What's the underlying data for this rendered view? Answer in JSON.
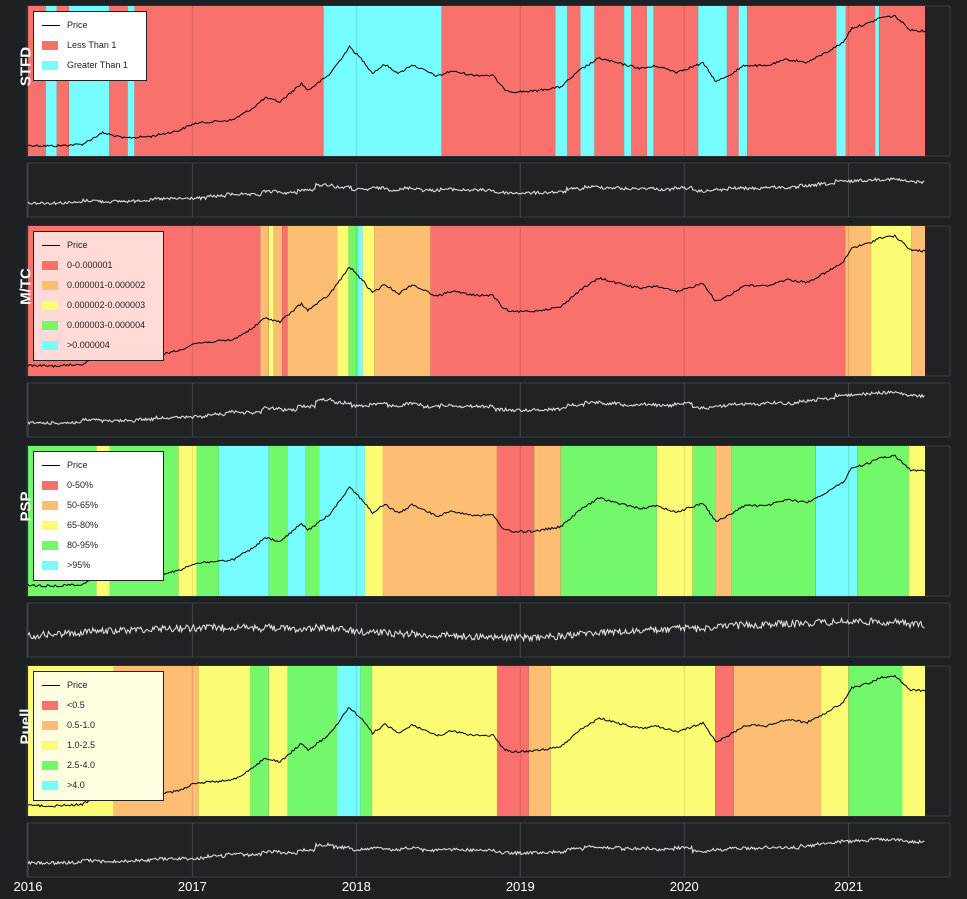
{
  "chart_data": {
    "type": "line",
    "x_ticks": [
      "2016",
      "2017",
      "2018",
      "2019",
      "2020",
      "2021"
    ],
    "x_range": [
      "2016-01-01",
      "2021-06-20"
    ],
    "y_scale": "log",
    "grid": true,
    "legend_placement": "top-left",
    "price_series": {
      "name": "Price",
      "dates": [
        "2016-01-01",
        "2016-03-01",
        "2016-05-01",
        "2016-06-15",
        "2016-08-01",
        "2016-10-01",
        "2016-12-01",
        "2017-01-05",
        "2017-02-01",
        "2017-04-01",
        "2017-05-15",
        "2017-06-12",
        "2017-07-15",
        "2017-09-01",
        "2017-09-15",
        "2017-11-01",
        "2017-12-17",
        "2018-01-15",
        "2018-02-06",
        "2018-03-05",
        "2018-04-06",
        "2018-05-05",
        "2018-06-30",
        "2018-08-01",
        "2018-09-15",
        "2018-11-01",
        "2018-11-25",
        "2018-12-15",
        "2019-02-01",
        "2019-04-01",
        "2019-05-15",
        "2019-06-26",
        "2019-08-01",
        "2019-09-26",
        "2019-11-01",
        "2019-12-15",
        "2020-02-12",
        "2020-03-12",
        "2020-04-15",
        "2020-05-15",
        "2020-07-01",
        "2020-08-15",
        "2020-10-01",
        "2020-11-15",
        "2020-12-20",
        "2021-01-08",
        "2021-02-15",
        "2021-03-13",
        "2021-04-14",
        "2021-05-19",
        "2021-06-20"
      ],
      "values": [
        430,
        420,
        450,
        700,
        570,
        610,
        760,
        1000,
        1050,
        1150,
        1800,
        2700,
        2300,
        4700,
        3600,
        6500,
        19200,
        11500,
        7000,
        9800,
        6900,
        9700,
        6200,
        7600,
        6500,
        6400,
        3800,
        3400,
        3500,
        4100,
        8000,
        12500,
        10500,
        8400,
        9200,
        7300,
        10300,
        5000,
        6800,
        9500,
        9200,
        11800,
        10600,
        16000,
        23000,
        40000,
        48000,
        60000,
        63500,
        37000,
        35500
      ]
    },
    "panels": [
      {
        "title": "STFD",
        "legend": [
          {
            "label": "Price",
            "kind": "line",
            "color": "#000000"
          },
          {
            "label": "Less Than 1",
            "kind": "patch",
            "color": "#f8716c"
          },
          {
            "label": "Greater Than 1",
            "kind": "patch",
            "color": "#75fdff"
          }
        ],
        "bands": [
          {
            "from": "2016-01-01",
            "to": "2016-02-10",
            "class": 0
          },
          {
            "from": "2016-02-10",
            "to": "2016-03-05",
            "class": 1
          },
          {
            "from": "2016-03-05",
            "to": "2016-04-01",
            "class": 0
          },
          {
            "from": "2016-04-01",
            "to": "2016-06-30",
            "class": 1
          },
          {
            "from": "2016-06-30",
            "to": "2016-08-10",
            "class": 0
          },
          {
            "from": "2016-08-10",
            "to": "2016-08-25",
            "class": 1
          },
          {
            "from": "2016-08-25",
            "to": "2017-10-20",
            "class": 0
          },
          {
            "from": "2017-10-20",
            "to": "2018-07-10",
            "class": 1
          },
          {
            "from": "2018-07-10",
            "to": "2019-03-20",
            "class": 0
          },
          {
            "from": "2019-03-20",
            "to": "2019-04-15",
            "class": 1
          },
          {
            "from": "2019-04-15",
            "to": "2019-05-15",
            "class": 0
          },
          {
            "from": "2019-05-15",
            "to": "2019-06-15",
            "class": 1
          },
          {
            "from": "2019-06-15",
            "to": "2019-08-20",
            "class": 0
          },
          {
            "from": "2019-08-20",
            "to": "2019-09-05",
            "class": 1
          },
          {
            "from": "2019-09-05",
            "to": "2019-10-10",
            "class": 0
          },
          {
            "from": "2019-10-10",
            "to": "2019-10-25",
            "class": 1
          },
          {
            "from": "2019-10-25",
            "to": "2020-02-01",
            "class": 0
          },
          {
            "from": "2020-02-01",
            "to": "2020-04-05",
            "class": 1
          },
          {
            "from": "2020-04-05",
            "to": "2020-05-01",
            "class": 0
          },
          {
            "from": "2020-05-01",
            "to": "2020-05-20",
            "class": 1
          },
          {
            "from": "2020-05-20",
            "to": "2020-12-05",
            "class": 0
          },
          {
            "from": "2020-12-05",
            "to": "2020-12-25",
            "class": 1
          },
          {
            "from": "2020-12-25",
            "to": "2021-03-01",
            "class": 0
          },
          {
            "from": "2021-03-01",
            "to": "2021-03-10",
            "class": 1
          },
          {
            "from": "2021-03-10",
            "to": "2021-06-20",
            "class": 0
          }
        ]
      },
      {
        "title": "M/TC",
        "legend": [
          {
            "label": "Price",
            "kind": "line",
            "color": "#000000"
          },
          {
            "label": "0-0.000001",
            "kind": "patch",
            "color": "#f8716c"
          },
          {
            "label": "0.000001-0.000002",
            "kind": "patch",
            "color": "#fdbd72"
          },
          {
            "label": "0.000002-0.000003",
            "kind": "patch",
            "color": "#fdfd75"
          },
          {
            "label": "0.000003-0.000004",
            "kind": "patch",
            "color": "#73f76b"
          },
          {
            "label": ">0.000004",
            "kind": "patch",
            "color": "#75fdff"
          }
        ],
        "bands": [
          {
            "from": "2016-01-01",
            "to": "2017-06-01",
            "class": 0
          },
          {
            "from": "2017-06-01",
            "to": "2017-06-20",
            "class": 1
          },
          {
            "from": "2017-06-20",
            "to": "2017-07-01",
            "class": 2
          },
          {
            "from": "2017-07-01",
            "to": "2017-07-20",
            "class": 1
          },
          {
            "from": "2017-07-20",
            "to": "2017-08-01",
            "class": 0
          },
          {
            "from": "2017-08-01",
            "to": "2017-11-20",
            "class": 1
          },
          {
            "from": "2017-11-20",
            "to": "2017-12-15",
            "class": 2
          },
          {
            "from": "2017-12-15",
            "to": "2018-01-05",
            "class": 3
          },
          {
            "from": "2018-01-05",
            "to": "2018-01-15",
            "class": 4
          },
          {
            "from": "2018-01-15",
            "to": "2018-02-10",
            "class": 2
          },
          {
            "from": "2018-02-10",
            "to": "2018-06-15",
            "class": 1
          },
          {
            "from": "2018-06-15",
            "to": "2020-12-25",
            "class": 0
          },
          {
            "from": "2020-12-25",
            "to": "2021-02-20",
            "class": 1
          },
          {
            "from": "2021-02-20",
            "to": "2021-05-20",
            "class": 2
          },
          {
            "from": "2021-05-20",
            "to": "2021-06-20",
            "class": 1
          }
        ]
      },
      {
        "title": "PSP",
        "legend": [
          {
            "label": "Price",
            "kind": "line",
            "color": "#000000"
          },
          {
            "label": "0-50%",
            "kind": "patch",
            "color": "#f8716c"
          },
          {
            "label": "50-65%",
            "kind": "patch",
            "color": "#fdbd72"
          },
          {
            "label": "65-80%",
            "kind": "patch",
            "color": "#fdfd75"
          },
          {
            "label": "80-95%",
            "kind": "patch",
            "color": "#73f76b"
          },
          {
            "label": ">95%",
            "kind": "patch",
            "color": "#75fdff"
          }
        ],
        "bands": [
          {
            "from": "2016-01-01",
            "to": "2016-06-01",
            "class": 3
          },
          {
            "from": "2016-06-01",
            "to": "2016-07-01",
            "class": 2
          },
          {
            "from": "2016-07-01",
            "to": "2016-12-01",
            "class": 3
          },
          {
            "from": "2016-12-01",
            "to": "2017-01-10",
            "class": 2
          },
          {
            "from": "2017-01-10",
            "to": "2017-03-01",
            "class": 3
          },
          {
            "from": "2017-03-01",
            "to": "2017-06-20",
            "class": 4
          },
          {
            "from": "2017-06-20",
            "to": "2017-08-01",
            "class": 3
          },
          {
            "from": "2017-08-01",
            "to": "2017-09-10",
            "class": 4
          },
          {
            "from": "2017-09-10",
            "to": "2017-10-10",
            "class": 3
          },
          {
            "from": "2017-10-10",
            "to": "2018-01-20",
            "class": 4
          },
          {
            "from": "2018-01-20",
            "to": "2018-03-01",
            "class": 2
          },
          {
            "from": "2018-03-01",
            "to": "2018-11-10",
            "class": 1
          },
          {
            "from": "2018-11-10",
            "to": "2019-02-01",
            "class": 0
          },
          {
            "from": "2019-02-01",
            "to": "2019-04-01",
            "class": 1
          },
          {
            "from": "2019-04-01",
            "to": "2019-11-01",
            "class": 3
          },
          {
            "from": "2019-11-01",
            "to": "2020-01-20",
            "class": 2
          },
          {
            "from": "2020-01-20",
            "to": "2020-03-10",
            "class": 3
          },
          {
            "from": "2020-03-10",
            "to": "2020-04-15",
            "class": 1
          },
          {
            "from": "2020-04-15",
            "to": "2020-10-20",
            "class": 3
          },
          {
            "from": "2020-10-20",
            "to": "2021-01-20",
            "class": 4
          },
          {
            "from": "2021-01-20",
            "to": "2021-05-15",
            "class": 3
          },
          {
            "from": "2021-05-15",
            "to": "2021-06-20",
            "class": 2
          }
        ]
      },
      {
        "title": "Puell",
        "legend": [
          {
            "label": "Price",
            "kind": "line",
            "color": "#000000"
          },
          {
            "label": "<0.5",
            "kind": "patch",
            "color": "#f8716c"
          },
          {
            "label": "0.5-1.0",
            "kind": "patch",
            "color": "#fdbd72"
          },
          {
            "label": "1.0-2.5",
            "kind": "patch",
            "color": "#fdfd75"
          },
          {
            "label": "2.5-4.0",
            "kind": "patch",
            "color": "#73f76b"
          },
          {
            "label": ">4.0",
            "kind": "patch",
            "color": "#75fdff"
          }
        ],
        "bands": [
          {
            "from": "2016-01-01",
            "to": "2016-07-10",
            "class": 2
          },
          {
            "from": "2016-07-10",
            "to": "2017-01-15",
            "class": 1
          },
          {
            "from": "2017-01-15",
            "to": "2017-05-10",
            "class": 2
          },
          {
            "from": "2017-05-10",
            "to": "2017-06-20",
            "class": 3
          },
          {
            "from": "2017-06-20",
            "to": "2017-08-01",
            "class": 2
          },
          {
            "from": "2017-08-01",
            "to": "2017-11-20",
            "class": 3
          },
          {
            "from": "2017-11-20",
            "to": "2018-01-10",
            "class": 4
          },
          {
            "from": "2018-01-10",
            "to": "2018-02-05",
            "class": 3
          },
          {
            "from": "2018-02-05",
            "to": "2018-11-10",
            "class": 2
          },
          {
            "from": "2018-11-10",
            "to": "2019-01-20",
            "class": 0
          },
          {
            "from": "2019-01-20",
            "to": "2019-03-10",
            "class": 1
          },
          {
            "from": "2019-03-10",
            "to": "2020-03-10",
            "class": 2
          },
          {
            "from": "2020-03-10",
            "to": "2020-04-20",
            "class": 0
          },
          {
            "from": "2020-04-20",
            "to": "2020-11-01",
            "class": 1
          },
          {
            "from": "2020-11-01",
            "to": "2021-01-01",
            "class": 2
          },
          {
            "from": "2021-01-01",
            "to": "2021-05-01",
            "class": 3
          },
          {
            "from": "2021-05-01",
            "to": "2021-06-20",
            "class": 2
          }
        ]
      }
    ]
  }
}
